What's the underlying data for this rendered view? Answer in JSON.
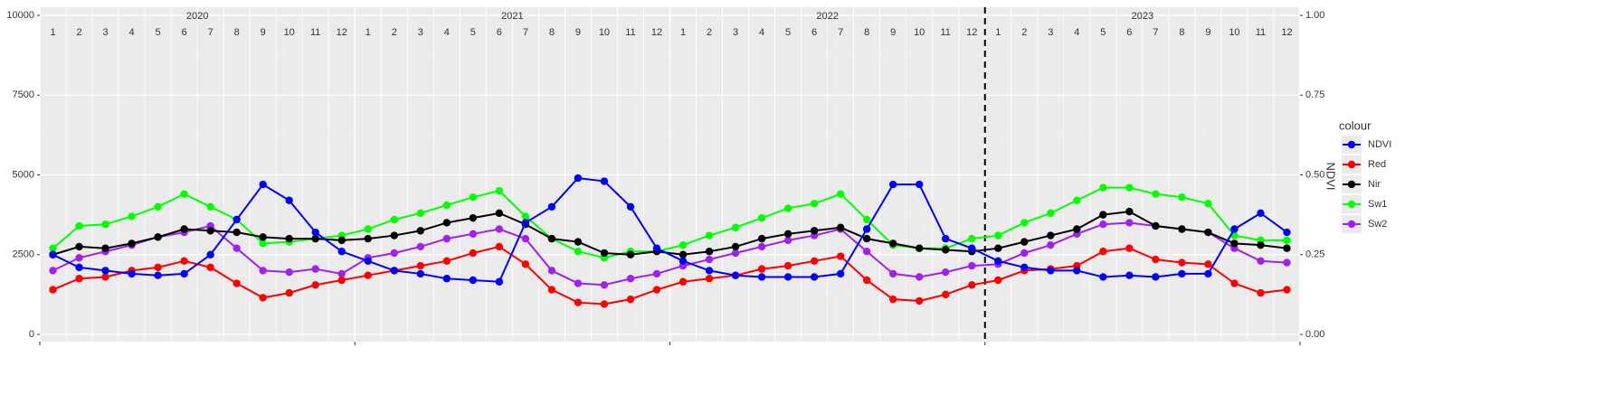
{
  "chart_data": {
    "type": "line",
    "years": [
      "2020",
      "2021",
      "2022",
      "2023"
    ],
    "months": [
      "1",
      "2",
      "3",
      "4",
      "5",
      "6",
      "7",
      "8",
      "9",
      "10",
      "11",
      "12"
    ],
    "ylim": [
      0,
      10000
    ],
    "yticks": [
      0,
      2500,
      5000,
      7500,
      10000
    ],
    "y2lim": [
      0,
      1
    ],
    "y2ticks": [
      {
        "value": 0,
        "label": "0.00"
      },
      0.25,
      {
        "value": 0.5,
        "label": "0.50"
      },
      0.75,
      {
        "value": 1,
        "label": "1.00"
      }
    ],
    "y2label": "NDVI",
    "legend_title": "colour",
    "legend": "right",
    "grid": true,
    "vline": "2023",
    "series": [
      {
        "name": "NDVI",
        "color": "#0000ff",
        "axis": "y2",
        "values": [
          0.25,
          0.21,
          0.2,
          0.19,
          0.185,
          0.19,
          0.25,
          0.36,
          0.47,
          0.42,
          0.32,
          0.26,
          0.23,
          0.2,
          0.19,
          0.175,
          0.17,
          0.165,
          0.35,
          0.4,
          0.49,
          0.48,
          0.4,
          0.27,
          0.23,
          0.2,
          0.185,
          0.18,
          0.18,
          0.18,
          0.19,
          0.33,
          0.47,
          0.47,
          0.3,
          0.27,
          0.23,
          0.21,
          0.2,
          0.2,
          0.18,
          0.185,
          0.18,
          0.19,
          0.19,
          0.33,
          0.38,
          0.32
        ]
      },
      {
        "name": "Red",
        "color": "#ff0000",
        "values": [
          1400,
          1750,
          1800,
          2000,
          2100,
          2300,
          2100,
          1600,
          1150,
          1300,
          1550,
          1700,
          1850,
          2000,
          2150,
          2300,
          2550,
          2750,
          2200,
          1400,
          1000,
          950,
          1100,
          1400,
          1650,
          1750,
          1850,
          2050,
          2150,
          2300,
          2450,
          1700,
          1100,
          1050,
          1250,
          1550,
          1700,
          2000,
          2050,
          2150,
          2600,
          2700,
          2350,
          2250,
          2200,
          1600,
          1300,
          1400
        ]
      },
      {
        "name": "Nir",
        "color": "#000000",
        "values": [
          2500,
          2750,
          2700,
          2850,
          3050,
          3300,
          3250,
          3200,
          3050,
          3000,
          3000,
          2950,
          3000,
          3100,
          3250,
          3500,
          3650,
          3800,
          3450,
          3000,
          2900,
          2550,
          2500,
          2600,
          2500,
          2600,
          2750,
          3000,
          3150,
          3250,
          3350,
          3000,
          2850,
          2700,
          2650,
          2600,
          2700,
          2900,
          3100,
          3300,
          3750,
          3850,
          3400,
          3300,
          3200,
          2850,
          2800,
          2700
        ]
      },
      {
        "name": "Sw1",
        "color": "#00ff00",
        "values": [
          2700,
          3400,
          3450,
          3700,
          4000,
          4400,
          4000,
          3600,
          2850,
          2900,
          3000,
          3100,
          3300,
          3600,
          3800,
          4050,
          4300,
          4500,
          3700,
          3000,
          2600,
          2400,
          2600,
          2600,
          2800,
          3100,
          3350,
          3650,
          3950,
          4100,
          4400,
          3600,
          2800,
          2700,
          2700,
          3000,
          3100,
          3500,
          3800,
          4200,
          4600,
          4600,
          4400,
          4300,
          4100,
          3100,
          2950,
          2950
        ]
      },
      {
        "name": "Sw2",
        "color": "#a020f0",
        "values": [
          2000,
          2400,
          2600,
          2800,
          3050,
          3200,
          3400,
          2700,
          2000,
          1950,
          2050,
          1900,
          2400,
          2550,
          2750,
          3000,
          3150,
          3300,
          3000,
          2000,
          1600,
          1550,
          1750,
          1900,
          2150,
          2350,
          2550,
          2750,
          2950,
          3100,
          3300,
          2600,
          1900,
          1800,
          1950,
          2150,
          2200,
          2550,
          2800,
          3150,
          3450,
          3500,
          3400,
          3300,
          3200,
          2700,
          2300,
          2250
        ]
      }
    ]
  }
}
